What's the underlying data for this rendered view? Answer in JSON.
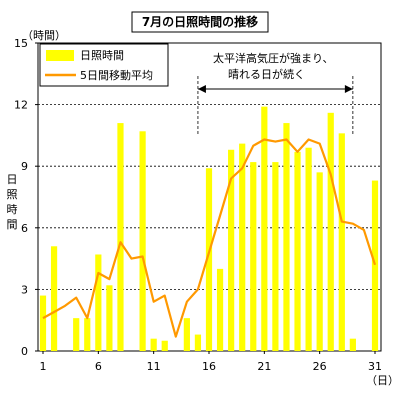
{
  "chart_data": {
    "type": "bar",
    "title": "7月の日照時間の推移",
    "ylabel": "日照時間",
    "y_unit": "（時間）",
    "x_unit": "（日）",
    "ylim": [
      0,
      15
    ],
    "y_ticks": [
      0,
      3,
      6,
      9,
      12,
      15
    ],
    "x_ticks": [
      1,
      6,
      11,
      16,
      21,
      26,
      31
    ],
    "grid": "horizontal dashed at 3, 6, 9, 12",
    "legend_position": "top-left",
    "annotation": {
      "line1": "太平洋高気圧が強まり、",
      "line2": "晴れる日が続く",
      "from_day": 15,
      "to_day": 29
    },
    "days": [
      1,
      2,
      3,
      4,
      5,
      6,
      7,
      8,
      9,
      10,
      11,
      12,
      13,
      14,
      15,
      16,
      17,
      18,
      19,
      20,
      21,
      22,
      23,
      24,
      25,
      26,
      27,
      28,
      29,
      30,
      31
    ],
    "series": [
      {
        "name": "日照時間",
        "kind": "bar",
        "color": "#ffff00",
        "values": [
          2.7,
          5.1,
          0,
          1.6,
          1.6,
          4.7,
          3.2,
          11.1,
          0,
          10.7,
          0.6,
          0.5,
          0,
          1.6,
          0.8,
          8.9,
          4.0,
          9.8,
          10.1,
          9.2,
          11.9,
          9.2,
          11.1,
          9.7,
          9.9,
          8.7,
          11.6,
          10.6,
          0.6,
          0,
          8.3
        ]
      },
      {
        "name": "5日間移動平均",
        "kind": "line",
        "color": "#ff9900",
        "values": [
          1.6,
          1.9,
          2.2,
          2.6,
          1.6,
          3.8,
          3.5,
          5.3,
          4.5,
          4.6,
          2.4,
          2.7,
          0.7,
          2.4,
          3.0,
          4.8,
          6.6,
          8.4,
          8.9,
          10.0,
          10.3,
          10.2,
          10.3,
          9.7,
          10.3,
          10.1,
          8.6,
          6.3,
          6.2,
          5.9,
          4.2
        ]
      }
    ]
  }
}
